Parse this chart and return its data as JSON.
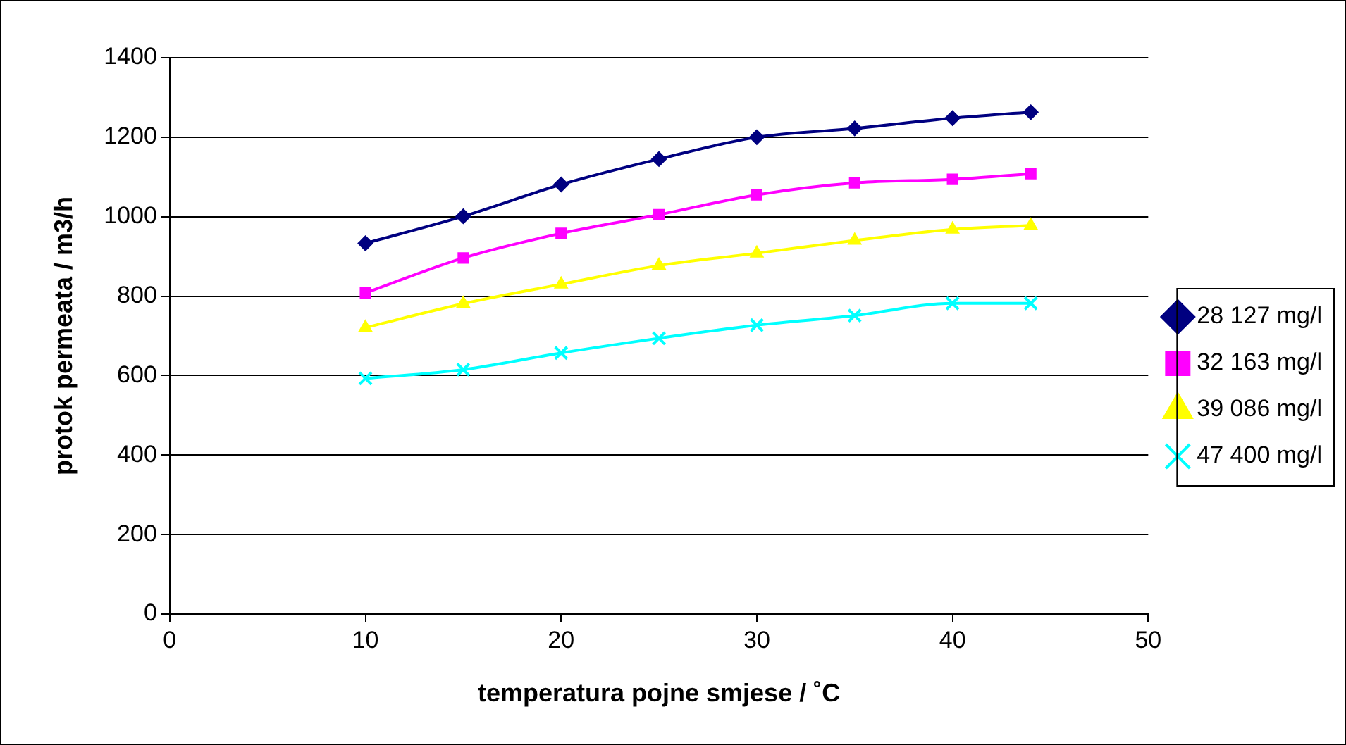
{
  "chart_data": {
    "type": "line",
    "xlabel": "temperatura pojne smjese / ˚C",
    "ylabel": "protok permeata / m3/h",
    "x": [
      10,
      15,
      20,
      25,
      30,
      35,
      40,
      44
    ],
    "series": [
      {
        "name": "28 127 mg/l",
        "color": "#000080",
        "marker": "diamond",
        "values": [
          933,
          1001,
          1081,
          1145,
          1200,
          1222,
          1248,
          1263
        ]
      },
      {
        "name": "32 163 mg/l",
        "color": "#ff00ff",
        "marker": "square",
        "values": [
          808,
          896,
          958,
          1005,
          1055,
          1085,
          1094,
          1108
        ]
      },
      {
        "name": "39 086 mg/l",
        "color": "#ffff00",
        "marker": "triangle",
        "values": [
          721,
          781,
          830,
          877,
          908,
          940,
          968,
          978
        ]
      },
      {
        "name": "47 400 mg/l",
        "color": "#00ffff",
        "marker": "cross",
        "values": [
          593,
          615,
          657,
          694,
          727,
          751,
          782,
          782
        ]
      }
    ],
    "xlim": [
      0,
      50
    ],
    "xticks": [
      0,
      10,
      20,
      30,
      40,
      50
    ],
    "ylim": [
      0,
      1400
    ],
    "yticks": [
      0,
      200,
      400,
      600,
      800,
      1000,
      1200,
      1400
    ],
    "grid": "y",
    "legend": "right"
  }
}
